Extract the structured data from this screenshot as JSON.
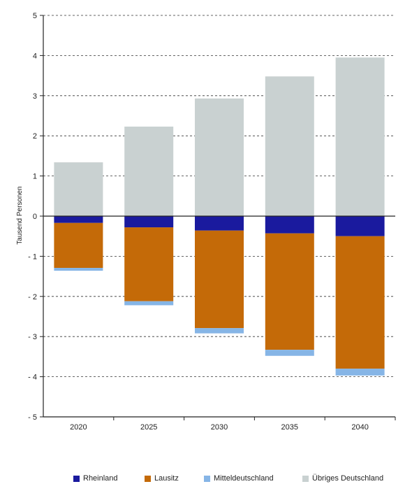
{
  "chart_data": {
    "type": "bar",
    "stacked": true,
    "title": "",
    "xlabel": "",
    "ylabel": "Tausend Personen",
    "ylim": [
      -5,
      5
    ],
    "yticks": [
      5,
      4,
      3,
      2,
      1,
      0,
      -1,
      -2,
      -3,
      -4,
      -5
    ],
    "ytick_labels": [
      "5",
      "4",
      "3",
      "2",
      "1",
      "0",
      "- 1",
      "- 2",
      "- 3",
      "- 4",
      "- 5"
    ],
    "grid": "horizontal-dashed",
    "legend_position": "bottom",
    "categories": [
      "2020",
      "2025",
      "2030",
      "2035",
      "2040"
    ],
    "series": [
      {
        "name": "Rheinland",
        "color": "#1a1a9e",
        "values": [
          -0.17,
          -0.28,
          -0.36,
          -0.43,
          -0.5
        ]
      },
      {
        "name": "Lausitz",
        "color": "#c46a08",
        "values": [
          -1.12,
          -1.84,
          -2.43,
          -2.9,
          -3.3
        ]
      },
      {
        "name": "Mitteldeutschland",
        "color": "#86b5e6",
        "values": [
          -0.07,
          -0.1,
          -0.13,
          -0.15,
          -0.17
        ]
      },
      {
        "name": "Übriges Deutschland",
        "color": "#c9d1d1",
        "values": [
          1.34,
          2.23,
          2.93,
          3.48,
          3.95
        ]
      }
    ]
  }
}
